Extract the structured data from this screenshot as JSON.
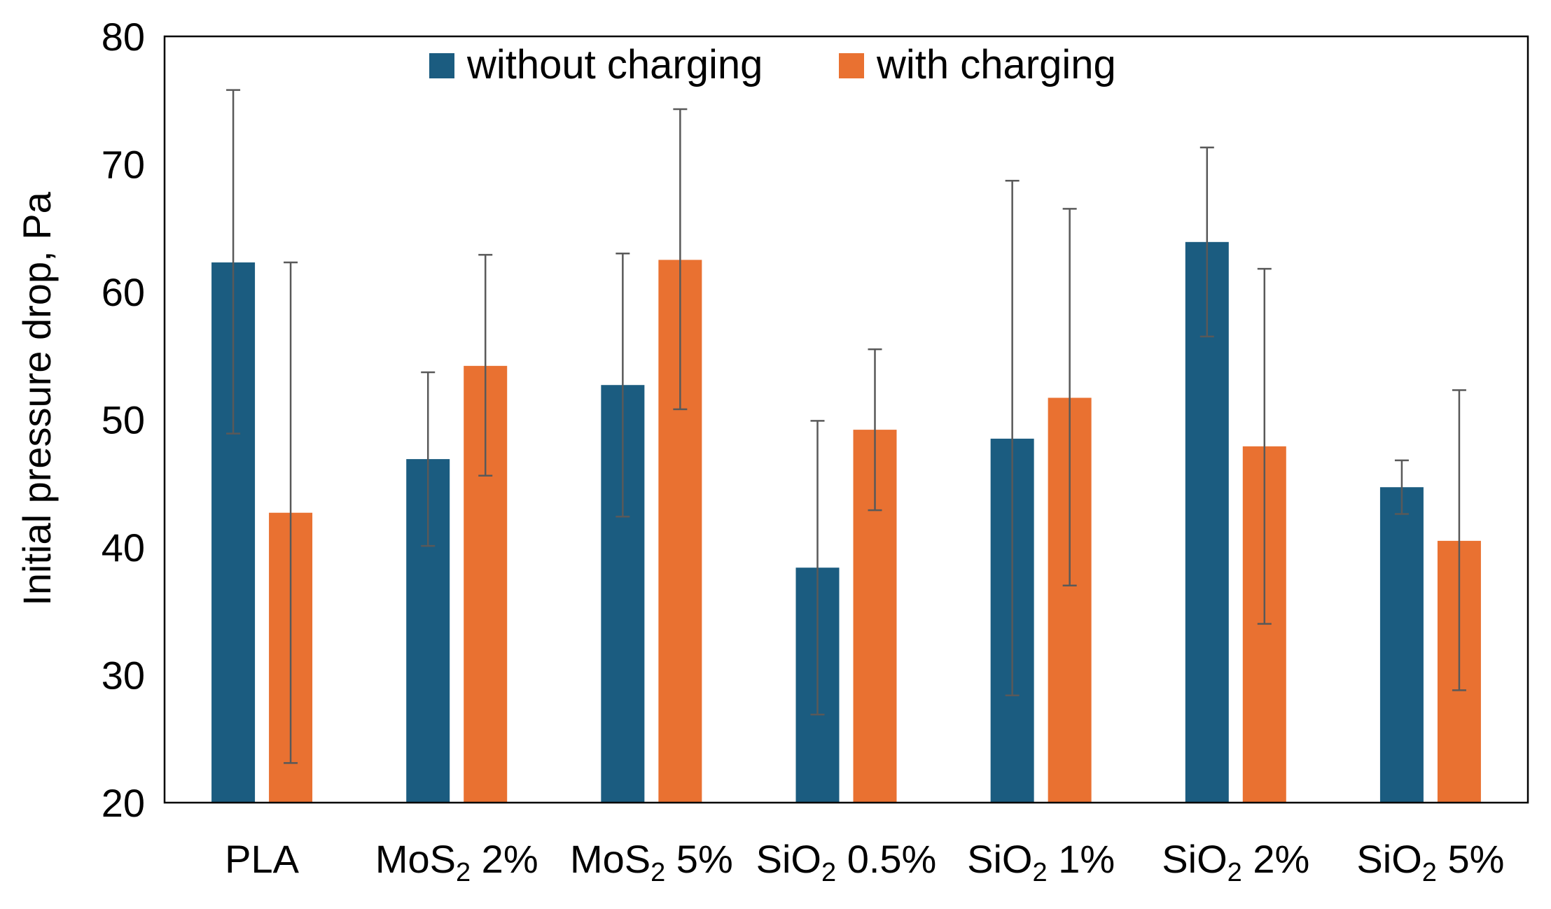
{
  "chart_data": {
    "type": "bar",
    "ylabel": "Initial pressure drop, Pa",
    "ylim": [
      20,
      80
    ],
    "yticks": [
      20,
      30,
      40,
      50,
      60,
      70,
      80
    ],
    "grid": false,
    "legend_position": "top-center",
    "categories": [
      {
        "label": "PLA",
        "base": "PLA",
        "sub": "",
        "suffix": ""
      },
      {
        "label": "MoS2 2%",
        "base": "MoS",
        "sub": "2",
        "suffix": " 2%"
      },
      {
        "label": "MoS2 5%",
        "base": "MoS",
        "sub": "2",
        "suffix": " 5%"
      },
      {
        "label": "SiO2 0.5%",
        "base": "SiO",
        "sub": "2",
        "suffix": " 0.5%"
      },
      {
        "label": "SiO2 1%",
        "base": "SiO",
        "sub": "2",
        "suffix": " 1%"
      },
      {
        "label": "SiO2 2%",
        "base": "SiO",
        "sub": "2",
        "suffix": " 2%"
      },
      {
        "label": "SiO2 5%",
        "base": "SiO",
        "sub": "2",
        "suffix": " 5%"
      }
    ],
    "series": [
      {
        "name": "without charging",
        "color": "#1b5c80",
        "values": [
          62.3,
          46.9,
          52.7,
          38.4,
          48.5,
          63.9,
          44.7
        ],
        "error_low": [
          48.9,
          40.1,
          42.4,
          26.9,
          28.4,
          56.5,
          42.6
        ],
        "error_high": [
          75.8,
          53.7,
          63.0,
          49.9,
          68.7,
          71.3,
          46.8
        ]
      },
      {
        "name": "with charging",
        "color": "#e97131",
        "values": [
          42.7,
          54.2,
          62.5,
          49.2,
          51.7,
          47.9,
          40.5
        ],
        "error_low": [
          23.1,
          45.6,
          50.8,
          42.9,
          37.0,
          34.0,
          28.8
        ],
        "error_high": [
          62.3,
          62.9,
          74.3,
          55.5,
          66.5,
          61.8,
          52.3
        ]
      }
    ]
  }
}
